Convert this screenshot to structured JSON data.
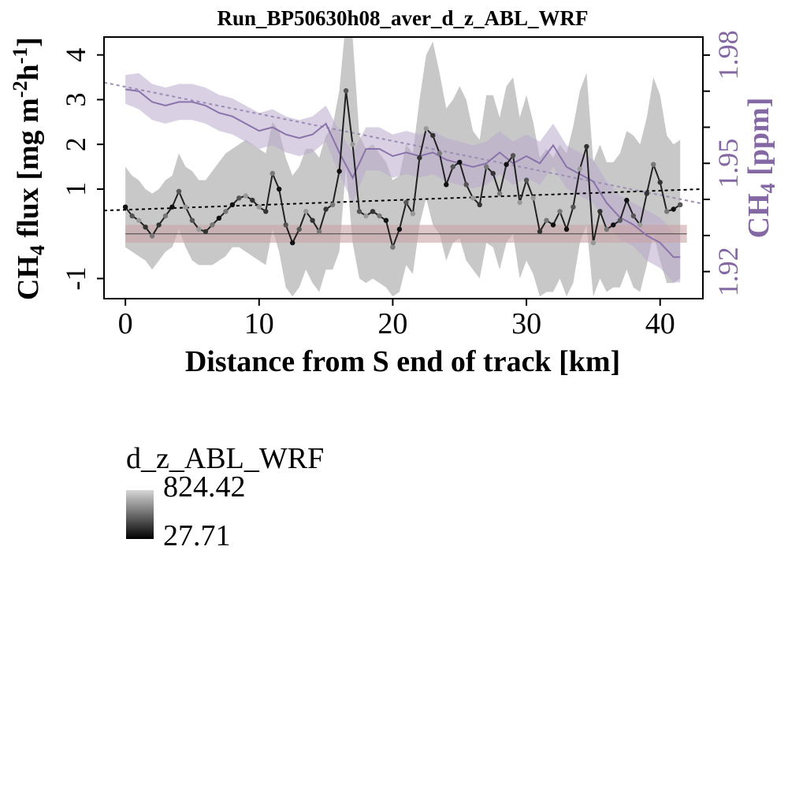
{
  "chart_data": {
    "type": "line",
    "title": "Run_BP50630h08_aver_d_z_ABL_WRF",
    "xlabel": "Distance from S end of track [km]",
    "ylabel_left": {
      "base": "CH",
      "sub1": "4",
      "mid": " flux [mg m",
      "sup1": "-2",
      "mid2": "h",
      "sup2": "-1",
      "end": "]"
    },
    "ylabel_right": {
      "base": "CH",
      "sub1": "4",
      "end": " [ppm]"
    },
    "xlim": [
      -1.6,
      43.2
    ],
    "ylim_left": [
      -1.45,
      4.4
    ],
    "ylim_right": [
      1.9125,
      1.985
    ],
    "x_ticks": [
      0,
      10,
      20,
      30,
      40
    ],
    "y_ticks_left": [
      -1,
      1,
      2,
      3,
      4
    ],
    "y_ticks_right_labeled": [
      1.92,
      1.95,
      1.98
    ],
    "y_ticks_right_all": [
      1.92,
      1.93,
      1.94,
      1.95,
      1.96,
      1.97,
      1.98
    ],
    "colors": {
      "flux_band": "#c8c8c8",
      "ch4_band": "#b9aacc",
      "ch4_line": "#8a72ab",
      "ch4_trend": "#9c8cb5",
      "flux_trend": "#000000",
      "background_band": "#c9a3a6",
      "background_line": "#c9a3a6",
      "right_axis": "#8468a4"
    },
    "series": [
      {
        "name": "CH4 flux",
        "x": [
          0,
          0.5,
          1,
          1.5,
          2,
          2.5,
          3,
          3.5,
          4,
          4.5,
          5,
          5.5,
          6,
          6.5,
          7,
          7.5,
          8,
          8.5,
          9,
          9.5,
          10,
          10.5,
          11,
          11.5,
          12,
          12.5,
          13,
          13.5,
          14,
          14.5,
          15,
          15.5,
          16,
          16.5,
          17,
          17.5,
          18,
          18.5,
          19,
          19.5,
          20,
          20.5,
          21,
          21.5,
          22,
          22.5,
          23,
          23.5,
          24,
          24.5,
          25,
          25.5,
          26,
          26.5,
          27,
          27.5,
          28,
          28.5,
          29,
          29.5,
          30,
          30.5,
          31,
          31.5,
          32,
          32.5,
          33,
          33.5,
          34,
          34.5,
          35,
          35.5,
          36,
          36.5,
          37,
          37.5,
          38,
          38.5,
          39,
          39.5,
          40,
          40.5,
          41,
          41.5
        ],
        "y": [
          0.6,
          0.4,
          0.3,
          0.15,
          -0.05,
          0.2,
          0.4,
          0.6,
          0.95,
          0.6,
          0.3,
          0.1,
          0.05,
          0.2,
          0.35,
          0.5,
          0.65,
          0.8,
          0.85,
          0.75,
          0.6,
          0.5,
          1.35,
          1.0,
          0.2,
          -0.2,
          0.1,
          0.5,
          0.3,
          0.05,
          0.55,
          0.65,
          1.4,
          3.2,
          2.0,
          0.5,
          0.4,
          0.5,
          0.4,
          0.3,
          -0.3,
          0.1,
          0.7,
          0.45,
          1.7,
          2.35,
          2.2,
          1.8,
          1.1,
          1.5,
          1.6,
          1.1,
          0.8,
          0.65,
          1.5,
          1.35,
          0.9,
          1.55,
          1.75,
          0.7,
          1.2,
          0.8,
          0.05,
          0.3,
          0.2,
          0.5,
          0.1,
          0.6,
          1.45,
          1.95,
          -0.2,
          0.5,
          0.1,
          0.2,
          0.3,
          0.75,
          0.4,
          0.2,
          0.9,
          1.55,
          1.15,
          0.5,
          0.55,
          0.65
        ],
        "band_upper": [
          1.5,
          1.3,
          1.2,
          1.0,
          0.9,
          1.0,
          1.2,
          1.3,
          1.8,
          1.5,
          1.4,
          1.2,
          1.2,
          1.4,
          1.6,
          1.8,
          1.9,
          2.0,
          2.1,
          2.0,
          1.9,
          1.8,
          2.5,
          2.3,
          1.7,
          1.3,
          1.5,
          1.9,
          1.9,
          1.7,
          2.2,
          2.4,
          3.2,
          4.8,
          4.4,
          2.2,
          1.9,
          2.0,
          1.8,
          1.6,
          1.2,
          1.3,
          2.0,
          1.8,
          3.0,
          4.0,
          4.3,
          3.6,
          2.8,
          3.0,
          3.3,
          3.0,
          2.3,
          2.1,
          3.1,
          3.1,
          2.6,
          3.3,
          3.5,
          2.6,
          3.1,
          2.5,
          1.7,
          1.9,
          1.7,
          2.0,
          1.8,
          2.4,
          3.2,
          3.6,
          1.6,
          2.0,
          1.6,
          1.6,
          1.8,
          2.3,
          2.2,
          2.0,
          2.6,
          3.5,
          3.1,
          2.2,
          2.0,
          2.1
        ],
        "band_lower": [
          -0.3,
          -0.4,
          -0.5,
          -0.6,
          -0.8,
          -0.6,
          -0.4,
          -0.3,
          0.1,
          -0.3,
          -0.6,
          -0.7,
          -0.7,
          -0.7,
          -0.6,
          -0.5,
          -0.3,
          -0.3,
          -0.4,
          -0.5,
          -0.6,
          -0.7,
          0.1,
          -0.4,
          -1.2,
          -1.4,
          -1.2,
          -0.8,
          -1.1,
          -1.3,
          -0.8,
          -0.8,
          -0.4,
          1.5,
          -0.2,
          -1.0,
          -1.1,
          -1.0,
          -1.1,
          -1.2,
          -1.4,
          -1.3,
          -0.7,
          -0.9,
          0.2,
          0.8,
          0.2,
          0.0,
          -0.6,
          -0.2,
          -0.1,
          -0.6,
          -0.8,
          -1.0,
          -0.2,
          -0.3,
          -0.8,
          -0.2,
          0.0,
          -1.0,
          -0.6,
          -0.9,
          -1.4,
          -1.3,
          -1.3,
          -1.0,
          -1.4,
          -1.1,
          -0.2,
          0.2,
          -1.4,
          -1.0,
          -1.3,
          -1.2,
          -1.2,
          -0.8,
          -1.2,
          -1.3,
          -0.7,
          0.0,
          -0.6,
          -1.1,
          -1.1,
          -1.0
        ]
      },
      {
        "name": "CH4",
        "x": [
          0,
          1,
          2,
          3,
          4,
          5,
          6,
          7,
          8,
          9,
          10,
          11,
          12,
          13,
          14,
          15,
          16,
          17,
          18,
          19,
          20,
          21,
          22,
          23,
          24,
          25,
          26,
          27,
          28,
          29,
          30,
          31,
          32,
          33,
          34,
          35,
          36,
          37,
          38,
          39,
          40,
          41,
          41.5
        ],
        "y": [
          1.9705,
          1.97,
          1.967,
          1.966,
          1.967,
          1.967,
          1.966,
          1.964,
          1.963,
          1.961,
          1.959,
          1.96,
          1.958,
          1.957,
          1.958,
          1.961,
          1.953,
          1.946,
          1.954,
          1.954,
          1.952,
          1.953,
          1.952,
          1.953,
          1.951,
          1.95,
          1.949,
          1.95,
          1.953,
          1.95,
          1.952,
          1.95,
          1.955,
          1.949,
          1.947,
          1.945,
          1.939,
          1.935,
          1.933,
          1.93,
          1.928,
          1.924,
          1.924
        ],
        "band_upper": [
          1.9745,
          1.975,
          1.972,
          1.971,
          1.972,
          1.972,
          1.971,
          1.969,
          1.968,
          1.966,
          1.964,
          1.965,
          1.963,
          1.962,
          1.963,
          1.966,
          1.959,
          1.953,
          1.96,
          1.96,
          1.958,
          1.959,
          1.958,
          1.959,
          1.957,
          1.956,
          1.955,
          1.956,
          1.959,
          1.956,
          1.958,
          1.956,
          1.961,
          1.955,
          1.953,
          1.951,
          1.945,
          1.941,
          1.939,
          1.937,
          1.935,
          1.931,
          1.93
        ],
        "band_lower": [
          1.9665,
          1.965,
          1.962,
          1.961,
          1.962,
          1.962,
          1.961,
          1.959,
          1.958,
          1.956,
          1.954,
          1.955,
          1.953,
          1.952,
          1.953,
          1.956,
          1.947,
          1.939,
          1.948,
          1.948,
          1.946,
          1.947,
          1.946,
          1.947,
          1.945,
          1.944,
          1.943,
          1.944,
          1.947,
          1.944,
          1.946,
          1.944,
          1.949,
          1.943,
          1.941,
          1.939,
          1.933,
          1.929,
          1.927,
          1.923,
          1.921,
          1.917,
          1.917
        ]
      }
    ],
    "flux_trend": {
      "x": [
        -1.6,
        43.2
      ],
      "y": [
        0.52,
        1.0
      ]
    },
    "ch4_trend": {
      "x": [
        -1.6,
        43.2
      ],
      "y": [
        1.9724,
        1.9388
      ]
    },
    "background_band": {
      "x": [
        0,
        42
      ],
      "y": [
        -0.2,
        0.2
      ]
    },
    "zero_line": 0,
    "legend": {
      "title": "d_z_ABL_WRF",
      "max": "824.42",
      "min": "27.71",
      "placement": "bottom-left"
    }
  }
}
